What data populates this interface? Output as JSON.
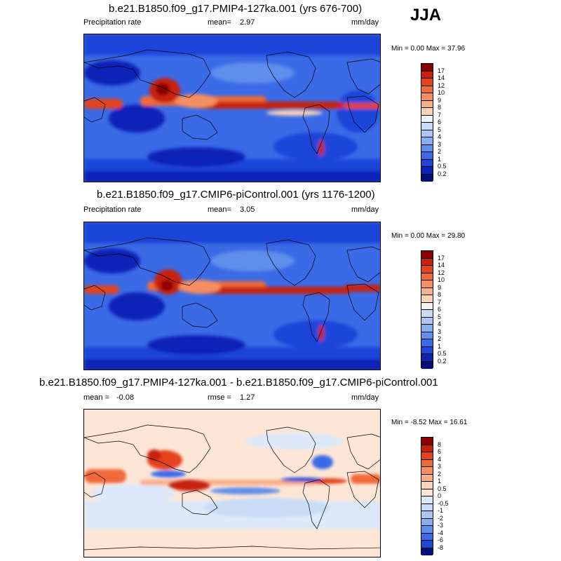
{
  "season": "JJA",
  "panels": [
    {
      "title": "b.e21.B1850.f09_g17.PMIP4-127ka.001 (yrs 676-700)",
      "variable": "Precipitation rate",
      "mean_label": "mean=",
      "mean": "2.97",
      "units": "mm/day",
      "minmax": "Min =  0.00 Max =  37.96",
      "colorbar_ticks": [
        "17",
        "14",
        "12",
        "10",
        "9",
        "8",
        "7",
        "6",
        "5",
        "4",
        "3",
        "2",
        "1",
        "0.5",
        "0.2"
      ],
      "colorbar_colors": [
        "#8b0000",
        "#c8200e",
        "#e4421c",
        "#f06a3a",
        "#f58e60",
        "#f8b08a",
        "#fbd3b9",
        "#f2f2f2",
        "#c8dcf6",
        "#a9c6f4",
        "#86aef0",
        "#5f8eec",
        "#3b6ae6",
        "#1f45da",
        "#0b23b7",
        "#04107a"
      ]
    },
    {
      "title": "b.e21.B1850.f09_g17.CMIP6-piControl.001 (yrs 1176-1200)",
      "variable": "Precipitation rate",
      "mean_label": "mean=",
      "mean": "3.05",
      "units": "mm/day",
      "minmax": "Min =  0.00 Max =  29.80",
      "colorbar_ticks": [
        "17",
        "14",
        "12",
        "10",
        "9",
        "8",
        "7",
        "6",
        "5",
        "4",
        "3",
        "2",
        "1",
        "0.5",
        "0.2"
      ],
      "colorbar_colors": [
        "#8b0000",
        "#c8200e",
        "#e4421c",
        "#f06a3a",
        "#f58e60",
        "#f8b08a",
        "#fbd3b9",
        "#f2f2f2",
        "#c8dcf6",
        "#a9c6f4",
        "#86aef0",
        "#5f8eec",
        "#3b6ae6",
        "#1f45da",
        "#0b23b7",
        "#04107a"
      ]
    },
    {
      "title": "b.e21.B1850.f09_g17.PMIP4-127ka.001 - b.e21.B1850.f09_g17.CMIP6-piControl.001",
      "mean_label": "mean =",
      "mean": "-0.08",
      "rmse_label": "rmse =",
      "rmse": "1.27",
      "units": "mm/day",
      "minmax": "Min =  -8.52 Max =  16.61",
      "colorbar_ticks": [
        "8",
        "6",
        "4",
        "3",
        "2",
        "1",
        "0.5",
        "0",
        "-0.5",
        "-1",
        "-2",
        "-3",
        "-4",
        "-6",
        "-8"
      ],
      "colorbar_colors": [
        "#8b0000",
        "#c8200e",
        "#e4421c",
        "#f06a3a",
        "#f58e60",
        "#f8b08a",
        "#fbd3b9",
        "#fde6d6",
        "#dde9fa",
        "#c8dcf6",
        "#a9c6f4",
        "#86aef0",
        "#5f8eec",
        "#3b6ae6",
        "#1f45da",
        "#04107a"
      ]
    }
  ]
}
